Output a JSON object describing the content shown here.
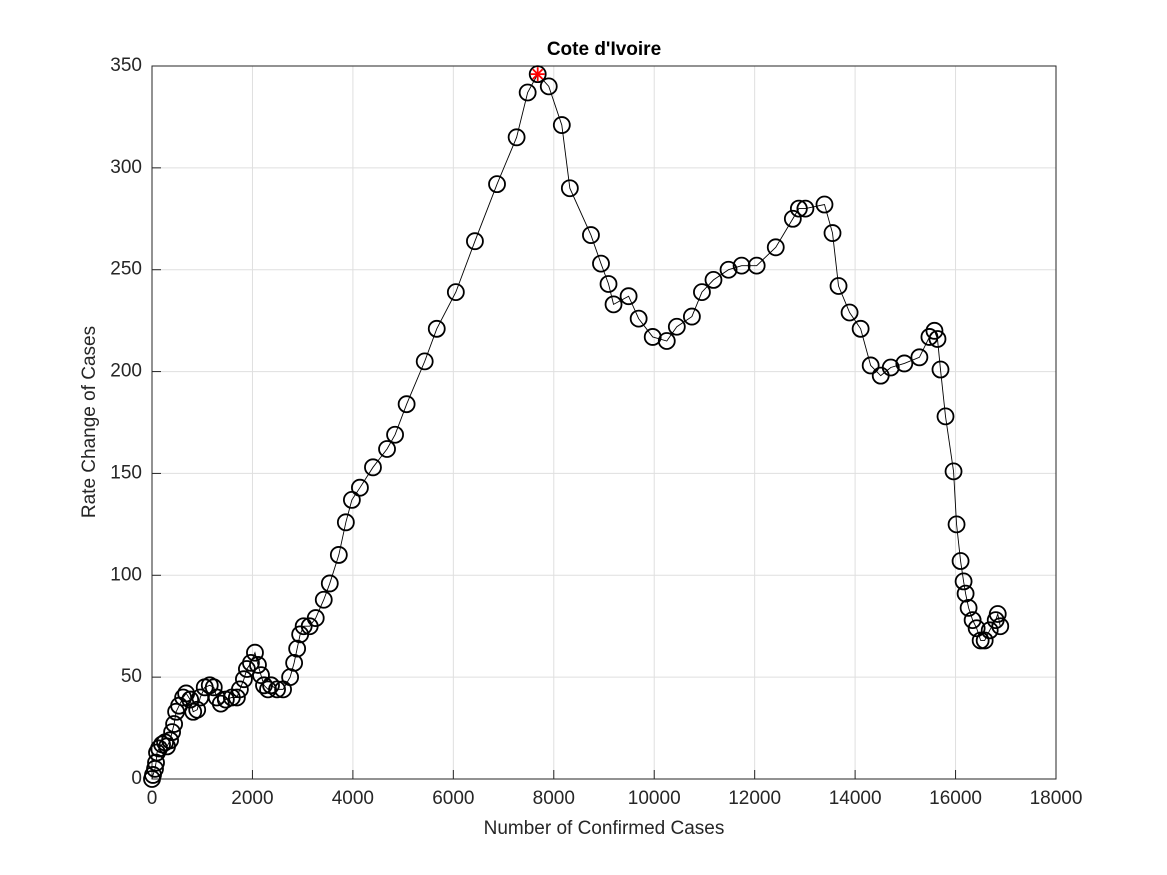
{
  "chart_data": {
    "type": "line",
    "title": "Cote d'Ivoire",
    "xlabel": "Number of Confirmed Cases",
    "ylabel": "Rate Change of Cases",
    "xlim": [
      0,
      18000
    ],
    "xticks": [
      0,
      2000,
      4000,
      6000,
      8000,
      10000,
      12000,
      14000,
      16000,
      18000
    ],
    "ylim": [
      0,
      350
    ],
    "yticks": [
      0,
      50,
      100,
      150,
      200,
      250,
      300,
      350
    ],
    "grid": true,
    "series": [
      {
        "color": "#000000",
        "x": [
          0,
          20,
          60,
          80,
          100,
          140,
          200,
          260,
          300,
          360,
          400,
          440,
          480,
          540,
          620,
          680,
          760,
          820,
          900,
          960,
          1050,
          1150,
          1230,
          1290,
          1370,
          1470,
          1590,
          1690,
          1750,
          1830,
          1890,
          1970,
          2050,
          2110,
          2170,
          2230,
          2310,
          2370,
          2490,
          2610,
          2750,
          2830,
          2890,
          2950,
          3020,
          3140,
          3260,
          3420,
          3540,
          3720,
          3860,
          3980,
          4140,
          4400,
          4680,
          4840,
          5070,
          5430,
          5670,
          6050,
          6430,
          6870,
          7260,
          7480,
          7680,
          7900,
          8160,
          8320,
          8740,
          8940,
          9090,
          9190,
          9490,
          9690,
          9970,
          10250,
          10450,
          10750,
          10950,
          11180,
          11480,
          11740,
          12040,
          12420,
          12760,
          12880,
          13010,
          13390,
          13550,
          13670,
          13890,
          14110,
          14310,
          14510,
          14710,
          14980,
          15280,
          15480,
          15580,
          15640,
          15700,
          15800,
          15960,
          16020,
          16100,
          16160,
          16200,
          16260,
          16340,
          16420,
          16500,
          16580,
          16680,
          16800,
          16840,
          16890
        ],
        "values": [
          0,
          2,
          5,
          8,
          13,
          15,
          17,
          18,
          16,
          19,
          23,
          27,
          33,
          36,
          40,
          42,
          39,
          33,
          34,
          40,
          45,
          46,
          45,
          40,
          37,
          39,
          40,
          40,
          44,
          49,
          54,
          57,
          62,
          56,
          51,
          46,
          44,
          46,
          44,
          44,
          50,
          57,
          64,
          71,
          75,
          75,
          79,
          88,
          96,
          110,
          126,
          137,
          143,
          153,
          162,
          169,
          184,
          205,
          221,
          239,
          264,
          292,
          315,
          337,
          346,
          340,
          321,
          290,
          267,
          253,
          243,
          233,
          237,
          226,
          217,
          215,
          222,
          227,
          239,
          245,
          250,
          252,
          252,
          261,
          275,
          280,
          280,
          282,
          268,
          242,
          229,
          221,
          203,
          198,
          202,
          204,
          207,
          217,
          220,
          216,
          201,
          178,
          151,
          125,
          107,
          97,
          91,
          84,
          78,
          74,
          68,
          68,
          73,
          78,
          81,
          75
        ]
      }
    ],
    "highlight": {
      "x": 7680,
      "y": 346,
      "color": "#ff0000"
    }
  }
}
